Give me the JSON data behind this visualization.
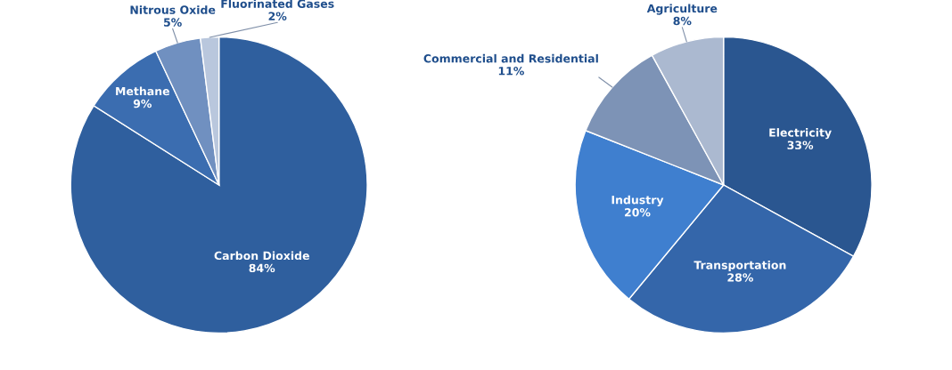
{
  "chart_data": [
    {
      "type": "pie",
      "categories": [
        "Carbon Dioxide",
        "Methane",
        "Nitrous Oxide",
        "Fluorinated Gases"
      ],
      "values": [
        84,
        9,
        5,
        2
      ],
      "value_labels": [
        "84%",
        "9%",
        "5%",
        "2%"
      ],
      "colors": [
        "#2f5f9e",
        "#3b6db0",
        "#7090c0",
        "#b9c7dd"
      ]
    },
    {
      "type": "pie",
      "categories": [
        "Electricity",
        "Transportation",
        "Industry",
        "Commercial and Residential",
        "Agriculture"
      ],
      "values": [
        33,
        28,
        20,
        11,
        8
      ],
      "value_labels": [
        "33%",
        "28%",
        "20%",
        "11%",
        "8%"
      ],
      "colors": [
        "#2a5690",
        "#3466aa",
        "#3f7fcf",
        "#7d93b6",
        "#abb9d0"
      ]
    }
  ]
}
